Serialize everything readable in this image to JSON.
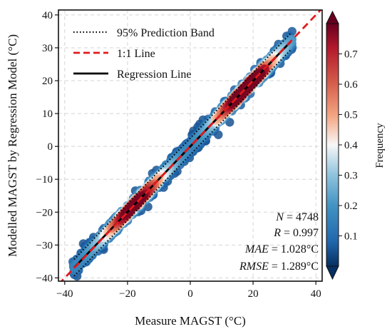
{
  "chart_data": {
    "type": "scatter",
    "title": "",
    "xlabel": "Measure MAGST (°C)",
    "ylabel": "Modelled MAGST by Regression Model (°C)",
    "xlim": [
      -42,
      42
    ],
    "ylim": [
      -41,
      41.5
    ],
    "xticks": [
      -40,
      -20,
      0,
      20,
      40
    ],
    "yticks": [
      -40,
      -30,
      -20,
      -10,
      0,
      10,
      20,
      30,
      40
    ],
    "grid": true,
    "legend_position": "top-left",
    "legend": [
      {
        "label": "95% Prediction Band",
        "style": "dotted",
        "color": "#000000"
      },
      {
        "label": "1:1 Line",
        "style": "dashed",
        "color": "#e31a1c"
      },
      {
        "label": "Regression Line",
        "style": "solid",
        "color": "#000000"
      }
    ],
    "regression": {
      "slope": 0.997,
      "intercept": 0.0,
      "x_range": [
        -37,
        32
      ]
    },
    "prediction_band": {
      "half_width": 2.53
    },
    "identity_line": {
      "x_range": [
        -42,
        42
      ]
    },
    "point_cloud": {
      "x_range": [
        -37.5,
        32.5
      ],
      "spread": 1.7,
      "count": 4748
    },
    "density_peak_x": [
      -18,
      18
    ],
    "stats": {
      "n_label": "N",
      "n_value": "4748",
      "r_label": "R",
      "r_value": "0.997",
      "mae_label": "MAE",
      "mae_value": "1.028°C",
      "rmse_label": "RMSE",
      "rmse_value": "1.289°C"
    },
    "colorbar": {
      "label": "Frequency",
      "min": 0.0,
      "max": 0.8,
      "ticks": [
        0.1,
        0.2,
        0.3,
        0.4,
        0.5,
        0.6,
        0.7
      ],
      "colormap": "RdBu_r"
    }
  }
}
